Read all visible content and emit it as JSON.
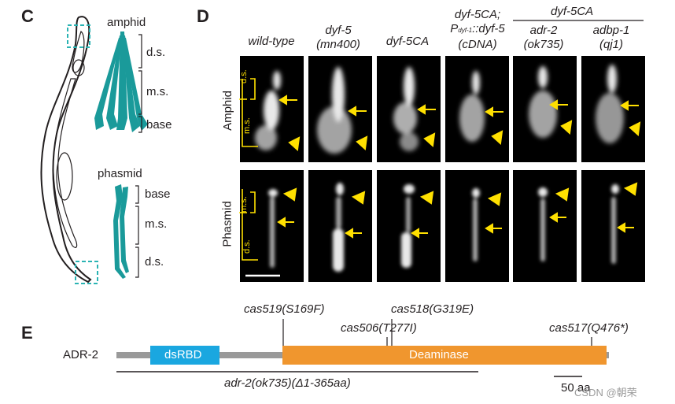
{
  "panel_c": {
    "letter": "C",
    "labels": {
      "amphid": "amphid",
      "phasmid": "phasmid",
      "ds_top": "d.s.",
      "ms_top": "m.s.",
      "base_top": "base",
      "base_bottom": "base",
      "ms_bottom": "m.s.",
      "ds_bottom": "d.s."
    },
    "colors": {
      "cilia": "#1a9a9a",
      "box": "#2ab3b3"
    }
  },
  "panel_d": {
    "letter": "D",
    "group_header": "dyf-5CA",
    "genotypes": [
      {
        "line1": "wild-type",
        "line2": ""
      },
      {
        "line1": "dyf-5",
        "line2": "(mn400)"
      },
      {
        "line1": "dyf-5CA",
        "line2": ""
      },
      {
        "line1": "dyf-5CA;",
        "line2_main": "P",
        "line2_sub": "dyf-1",
        "line2_rest": "::dyf-5",
        "line3": "(cDNA)"
      },
      {
        "line1": "adr-2",
        "line2": "(ok735)"
      },
      {
        "line1": "adbp-1",
        "line2": "(qj1)"
      }
    ],
    "rows": [
      "Amphid",
      "Phasmid"
    ],
    "scale_labels": {
      "amphid_ds": "d.s.",
      "amphid_ms": "m.s.",
      "phasmid_ms": "m.s.",
      "phasmid_ds": "d.s."
    },
    "colors": {
      "marker": "#ffe000"
    }
  },
  "panel_e": {
    "letter": "E",
    "protein": "ADR-2",
    "domains": [
      {
        "name": "dsRBD",
        "color": "#1aa7e0"
      },
      {
        "name": "Deaminase",
        "color": "#f0962e"
      }
    ],
    "mutations": [
      "cas519(S169F)",
      "cas506(T277I)",
      "cas518(G319E)",
      "cas517(Q476*)"
    ],
    "deletion": "adr-2(ok735)(Δ1-365aa)",
    "scale_bar": "50 aa",
    "watermark": "CSDN @朝荣"
  }
}
